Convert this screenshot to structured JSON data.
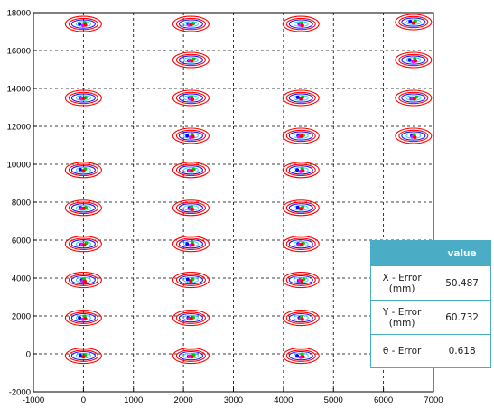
{
  "chart_data": {
    "type": "scatter",
    "title": "",
    "xlabel": "",
    "ylabel": "",
    "xlim": [
      -1000,
      7000
    ],
    "ylim": [
      -2000,
      18000
    ],
    "xticks": [
      -1000,
      0,
      1000,
      2000,
      3000,
      4000,
      5000,
      6000,
      7000
    ],
    "yticks": [
      -2000,
      0,
      2000,
      4000,
      6000,
      8000,
      10000,
      12000,
      14000,
      16000,
      18000
    ],
    "grid": "dashed",
    "ellipse_colors": {
      "outer": "#ff0000",
      "middle": "#1a1aff",
      "inner": "#33ccff"
    },
    "marker_colors": [
      "#0000ff",
      "#ff00ff",
      "#00cc00",
      "#ff0000"
    ],
    "target_points": [
      {
        "x": 0,
        "y": 17400
      },
      {
        "x": 2150,
        "y": 17400
      },
      {
        "x": 4350,
        "y": 17400
      },
      {
        "x": 6600,
        "y": 17500
      },
      {
        "x": 2150,
        "y": 15500
      },
      {
        "x": 6600,
        "y": 15500
      },
      {
        "x": 0,
        "y": 13500
      },
      {
        "x": 2150,
        "y": 13500
      },
      {
        "x": 4350,
        "y": 13500
      },
      {
        "x": 6600,
        "y": 13500
      },
      {
        "x": 2150,
        "y": 11500
      },
      {
        "x": 4350,
        "y": 11500
      },
      {
        "x": 6600,
        "y": 11500
      },
      {
        "x": 0,
        "y": 9700
      },
      {
        "x": 2150,
        "y": 9700
      },
      {
        "x": 4350,
        "y": 9700
      },
      {
        "x": 0,
        "y": 7700
      },
      {
        "x": 2150,
        "y": 7700
      },
      {
        "x": 4350,
        "y": 7700
      },
      {
        "x": 0,
        "y": 5800
      },
      {
        "x": 2150,
        "y": 5800
      },
      {
        "x": 4350,
        "y": 5800
      },
      {
        "x": 0,
        "y": 3900
      },
      {
        "x": 2150,
        "y": 3900
      },
      {
        "x": 4350,
        "y": 3900
      },
      {
        "x": 0,
        "y": 1900
      },
      {
        "x": 2150,
        "y": 1900
      },
      {
        "x": 4350,
        "y": 1900
      },
      {
        "x": 0,
        "y": -100
      },
      {
        "x": 2150,
        "y": -100
      },
      {
        "x": 4350,
        "y": -100
      }
    ]
  },
  "table": {
    "header_value": "value",
    "rows": [
      {
        "label_line1": "X - Error",
        "label_line2": "(mm)",
        "value": "50.487"
      },
      {
        "label_line1": "Y - Error",
        "label_line2": "(mm)",
        "value": "60.732"
      },
      {
        "label_line1": "θ - Error",
        "label_line2": "",
        "value": "0.618"
      }
    ]
  }
}
